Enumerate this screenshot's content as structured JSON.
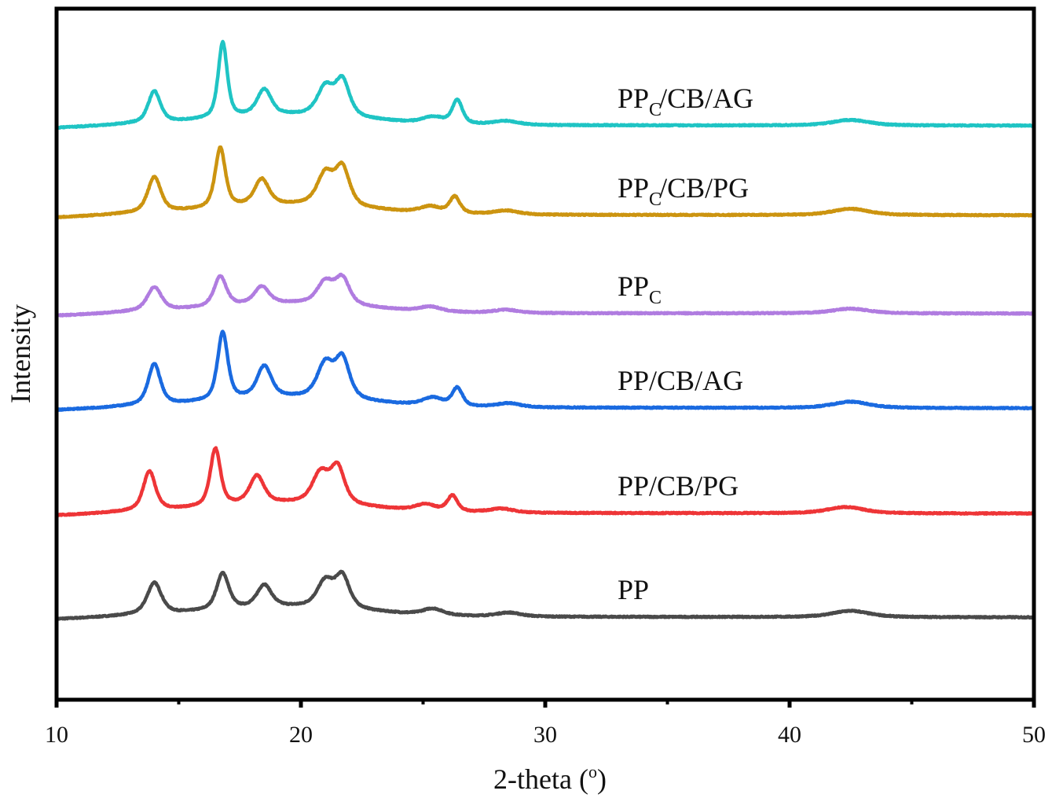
{
  "chart_data": {
    "type": "line",
    "title": "",
    "xlabel": "2-theta (°)",
    "xlabel_main": "2-theta (",
    "xlabel_sup": "o",
    "xlabel_close": ")",
    "ylabel": "Intensity",
    "xlim": [
      10,
      50
    ],
    "ylim": [
      0,
      881
    ],
    "x_ticks": [
      10,
      20,
      30,
      40,
      50
    ],
    "x_tick_labels": [
      "10",
      "20",
      "30",
      "40",
      "50"
    ],
    "x_minor_ticks": [
      15,
      25,
      35,
      45
    ],
    "y_ticks": [],
    "grid": false,
    "legend": "inline labels to the right of each curve",
    "series": [
      {
        "name": "PP",
        "label_main": "PP",
        "label_sub": "",
        "label_rest": "",
        "color": "#4a4a4a",
        "offset": 106,
        "baseline_slope": 0.03,
        "peaks": [
          {
            "x": 14.0,
            "h": 40,
            "w": 0.35
          },
          {
            "x": 16.8,
            "h": 46,
            "w": 0.3
          },
          {
            "x": 18.5,
            "h": 28,
            "w": 0.35
          },
          {
            "x": 21.0,
            "h": 33,
            "w": 0.4
          },
          {
            "x": 21.7,
            "h": 40,
            "w": 0.35
          },
          {
            "x": 25.4,
            "h": 8,
            "w": 0.5
          },
          {
            "x": 28.5,
            "h": 5,
            "w": 0.6
          },
          {
            "x": 42.5,
            "h": 8,
            "w": 0.9
          }
        ]
      },
      {
        "name": "PP/CB/PG",
        "label_main": "PP/CB/PG",
        "label_sub": "",
        "label_rest": "",
        "color": "#ee3537",
        "offset": 238,
        "baseline_slope": 0.03,
        "peaks": [
          {
            "x": 13.8,
            "h": 50,
            "w": 0.3
          },
          {
            "x": 16.5,
            "h": 73,
            "w": 0.25
          },
          {
            "x": 18.2,
            "h": 35,
            "w": 0.35
          },
          {
            "x": 20.8,
            "h": 38,
            "w": 0.4
          },
          {
            "x": 21.5,
            "h": 46,
            "w": 0.35
          },
          {
            "x": 25.1,
            "h": 8,
            "w": 0.5
          },
          {
            "x": 26.2,
            "h": 20,
            "w": 0.25
          },
          {
            "x": 28.2,
            "h": 5,
            "w": 0.6
          },
          {
            "x": 42.3,
            "h": 8,
            "w": 0.9
          }
        ]
      },
      {
        "name": "PP/CB/AG",
        "label_main": "PP/CB/AG",
        "label_sub": "",
        "label_rest": "",
        "color": "#1a6ae0",
        "offset": 372,
        "baseline_slope": 0.03,
        "peaks": [
          {
            "x": 14.0,
            "h": 52,
            "w": 0.3
          },
          {
            "x": 16.8,
            "h": 86,
            "w": 0.25
          },
          {
            "x": 18.5,
            "h": 40,
            "w": 0.35
          },
          {
            "x": 21.0,
            "h": 43,
            "w": 0.4
          },
          {
            "x": 21.7,
            "h": 50,
            "w": 0.35
          },
          {
            "x": 25.4,
            "h": 10,
            "w": 0.5
          },
          {
            "x": 26.4,
            "h": 23,
            "w": 0.25
          },
          {
            "x": 28.5,
            "h": 5,
            "w": 0.6
          },
          {
            "x": 42.5,
            "h": 8,
            "w": 0.9
          }
        ]
      },
      {
        "name": "PPC",
        "label_main": "PP",
        "label_sub": "C",
        "label_rest": "",
        "color": "#b07ce0",
        "offset": 492,
        "baseline_slope": 0.02,
        "peaks": [
          {
            "x": 14.0,
            "h": 30,
            "w": 0.35
          },
          {
            "x": 16.7,
            "h": 38,
            "w": 0.3
          },
          {
            "x": 18.4,
            "h": 22,
            "w": 0.35
          },
          {
            "x": 21.0,
            "h": 28,
            "w": 0.4
          },
          {
            "x": 21.7,
            "h": 33,
            "w": 0.35
          },
          {
            "x": 25.3,
            "h": 6,
            "w": 0.5
          },
          {
            "x": 28.4,
            "h": 4,
            "w": 0.6
          },
          {
            "x": 42.5,
            "h": 6,
            "w": 0.9
          }
        ]
      },
      {
        "name": "PPC/CB/PG",
        "label_main": "PP",
        "label_sub": "C",
        "label_rest": "/CB/PG",
        "color": "#cc9410",
        "offset": 617,
        "baseline_slope": 0.02,
        "peaks": [
          {
            "x": 14.0,
            "h": 45,
            "w": 0.32
          },
          {
            "x": 16.7,
            "h": 76,
            "w": 0.25
          },
          {
            "x": 18.4,
            "h": 33,
            "w": 0.35
          },
          {
            "x": 21.0,
            "h": 40,
            "w": 0.4
          },
          {
            "x": 21.7,
            "h": 48,
            "w": 0.35
          },
          {
            "x": 25.3,
            "h": 8,
            "w": 0.5
          },
          {
            "x": 26.3,
            "h": 21,
            "w": 0.25
          },
          {
            "x": 28.4,
            "h": 5,
            "w": 0.6
          },
          {
            "x": 42.5,
            "h": 8,
            "w": 0.9
          }
        ]
      },
      {
        "name": "PPC/CB/AG",
        "label_main": "PP",
        "label_sub": "C",
        "label_rest": "/CB/AG",
        "color": "#1fc4c4",
        "offset": 731,
        "baseline_slope": 0.02,
        "peaks": [
          {
            "x": 14.0,
            "h": 40,
            "w": 0.3
          },
          {
            "x": 16.8,
            "h": 96,
            "w": 0.22
          },
          {
            "x": 18.5,
            "h": 33,
            "w": 0.35
          },
          {
            "x": 21.0,
            "h": 36,
            "w": 0.4
          },
          {
            "x": 21.7,
            "h": 45,
            "w": 0.35
          },
          {
            "x": 25.4,
            "h": 8,
            "w": 0.5
          },
          {
            "x": 26.4,
            "h": 30,
            "w": 0.25
          },
          {
            "x": 28.4,
            "h": 5,
            "w": 0.6
          },
          {
            "x": 42.5,
            "h": 7,
            "w": 0.9
          }
        ]
      }
    ]
  }
}
